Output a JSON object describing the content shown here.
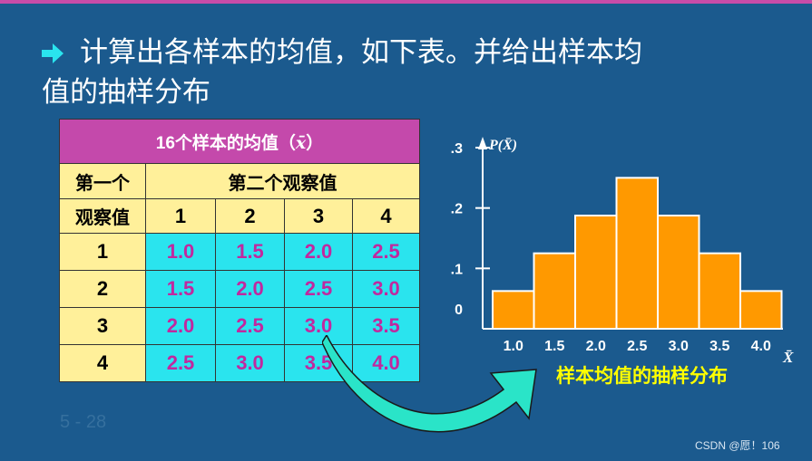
{
  "heading": {
    "line1": "计算出各样本的均值，如下表。并给出样本均",
    "line2": "值的抽样分布"
  },
  "table": {
    "title_prefix": "16个样本的均值（",
    "title_symbol": "x̄",
    "title_suffix": "）",
    "row_header_1": "第一个",
    "row_header_2": "观察值",
    "col_group_label": "第二个观察值",
    "col_labels": [
      "1",
      "2",
      "3",
      "4"
    ],
    "row_labels": [
      "1",
      "2",
      "3",
      "4"
    ],
    "cells": [
      [
        "1.0",
        "1.5",
        "2.0",
        "2.5"
      ],
      [
        "1.5",
        "2.0",
        "2.5",
        "3.0"
      ],
      [
        "2.0",
        "2.5",
        "3.0",
        "3.5"
      ],
      [
        "2.5",
        "3.0",
        "3.5",
        "4.0"
      ]
    ]
  },
  "chart_data": {
    "type": "bar",
    "categories": [
      "1.0",
      "1.5",
      "2.0",
      "2.5",
      "3.0",
      "3.5",
      "4.0"
    ],
    "values": [
      0.0625,
      0.125,
      0.1875,
      0.25,
      0.1875,
      0.125,
      0.0625
    ],
    "ylabel": "P(X̄)",
    "xlabel": "X̄",
    "y_ticks": [
      "0",
      ".1",
      ".2",
      ".3"
    ],
    "ylim": [
      0,
      0.3
    ],
    "caption": "样本均值的抽样分布",
    "bar_color": "#ff9900",
    "bar_edge_color": "#ffffff",
    "grid": false
  },
  "footer": {
    "page": "5 - 28",
    "watermark": "CSDN @愿！106"
  },
  "colors": {
    "background": "#1b5a8e",
    "table_title": "#c449ab",
    "table_header": "#fff09a",
    "table_cell": "#2ae4ee",
    "cell_text": "#c1289f",
    "arrow_fill": "#2ae4c8",
    "caption_text": "#ffff00"
  },
  "icons": {
    "bullet": "right-arrow-icon",
    "callout": "curved-arrow-icon"
  }
}
